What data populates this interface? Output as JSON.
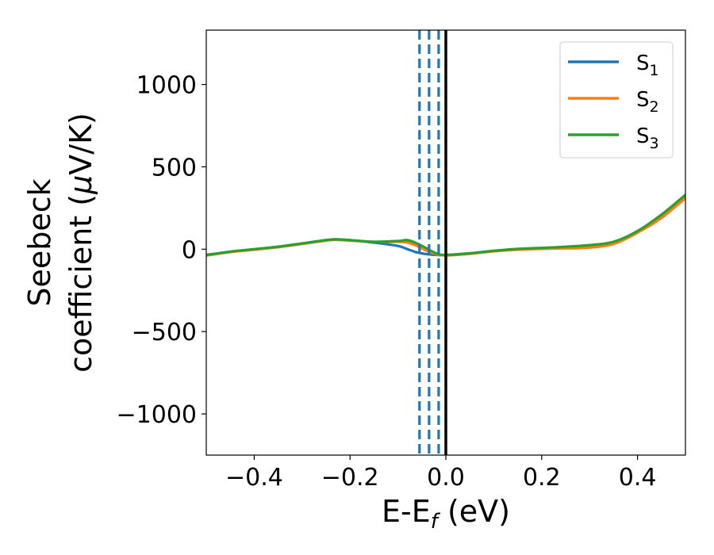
{
  "chart_data": {
    "type": "line",
    "xlabel": {
      "main": "E-E",
      "sub": "f",
      "rest": " (eV)"
    },
    "ylabel": {
      "line1": "Seebeck",
      "line2_text": "coefficient  (",
      "line2_mu": "μ",
      "line2_rest": "V/K)"
    },
    "xlim": [
      -0.5,
      0.5
    ],
    "ylim": [
      -1250,
      1330
    ],
    "xticks": [
      -0.4,
      -0.2,
      0.0,
      0.2,
      0.4
    ],
    "xtick_labels": [
      "−0.4",
      "−0.2",
      "0.0",
      "0.2",
      "0.4"
    ],
    "yticks": [
      1000,
      500,
      0,
      -500,
      -1000
    ],
    "ytick_labels": [
      "1000",
      "500",
      "0",
      "−500",
      "−1000"
    ],
    "legend_position": "top-right",
    "grid": false,
    "vlines": [
      {
        "x": 0.0,
        "style": "solid",
        "color": "#000000"
      },
      {
        "x": -0.055,
        "style": "dashed",
        "color": "#1f77b4"
      },
      {
        "x": -0.035,
        "style": "dashed",
        "color": "#1f77b4"
      },
      {
        "x": -0.015,
        "style": "dashed",
        "color": "#1f77b4"
      }
    ],
    "series": [
      {
        "name": "S",
        "sub": "1",
        "color": "#1f77b4",
        "x": [
          -0.5,
          -0.45,
          -0.4,
          -0.35,
          -0.3,
          -0.25,
          -0.23,
          -0.2,
          -0.15,
          -0.1,
          -0.08,
          -0.06,
          -0.04,
          -0.02,
          0.0,
          0.05,
          0.1,
          0.15,
          0.2,
          0.25,
          0.3,
          0.35,
          0.4,
          0.45,
          0.5
        ],
        "y": [
          -35,
          -15,
          0,
          15,
          35,
          55,
          60,
          55,
          40,
          20,
          0,
          -20,
          -30,
          -35,
          -35,
          -25,
          -10,
          0,
          5,
          10,
          15,
          40,
          110,
          200,
          320
        ]
      },
      {
        "name": "S",
        "sub": "2",
        "color": "#ff7f0e",
        "x": [
          -0.5,
          -0.45,
          -0.4,
          -0.35,
          -0.3,
          -0.25,
          -0.23,
          -0.2,
          -0.15,
          -0.1,
          -0.08,
          -0.06,
          -0.04,
          -0.02,
          0.0,
          0.05,
          0.1,
          0.15,
          0.2,
          0.25,
          0.3,
          0.35,
          0.4,
          0.45,
          0.5
        ],
        "y": [
          -38,
          -18,
          -3,
          12,
          32,
          52,
          57,
          52,
          45,
          45,
          40,
          20,
          -10,
          -30,
          -38,
          -28,
          -13,
          -3,
          2,
          5,
          10,
          32,
          100,
          190,
          310
        ]
      },
      {
        "name": "S",
        "sub": "3",
        "color": "#2ca02c",
        "x": [
          -0.5,
          -0.45,
          -0.4,
          -0.35,
          -0.3,
          -0.25,
          -0.23,
          -0.2,
          -0.15,
          -0.1,
          -0.08,
          -0.06,
          -0.04,
          -0.02,
          0.0,
          0.05,
          0.1,
          0.15,
          0.2,
          0.25,
          0.3,
          0.35,
          0.4,
          0.45,
          0.5
        ],
        "y": [
          -35,
          -15,
          0,
          15,
          35,
          55,
          60,
          55,
          45,
          50,
          55,
          35,
          5,
          -25,
          -35,
          -25,
          -10,
          2,
          8,
          15,
          25,
          45,
          110,
          210,
          330
        ]
      }
    ]
  }
}
